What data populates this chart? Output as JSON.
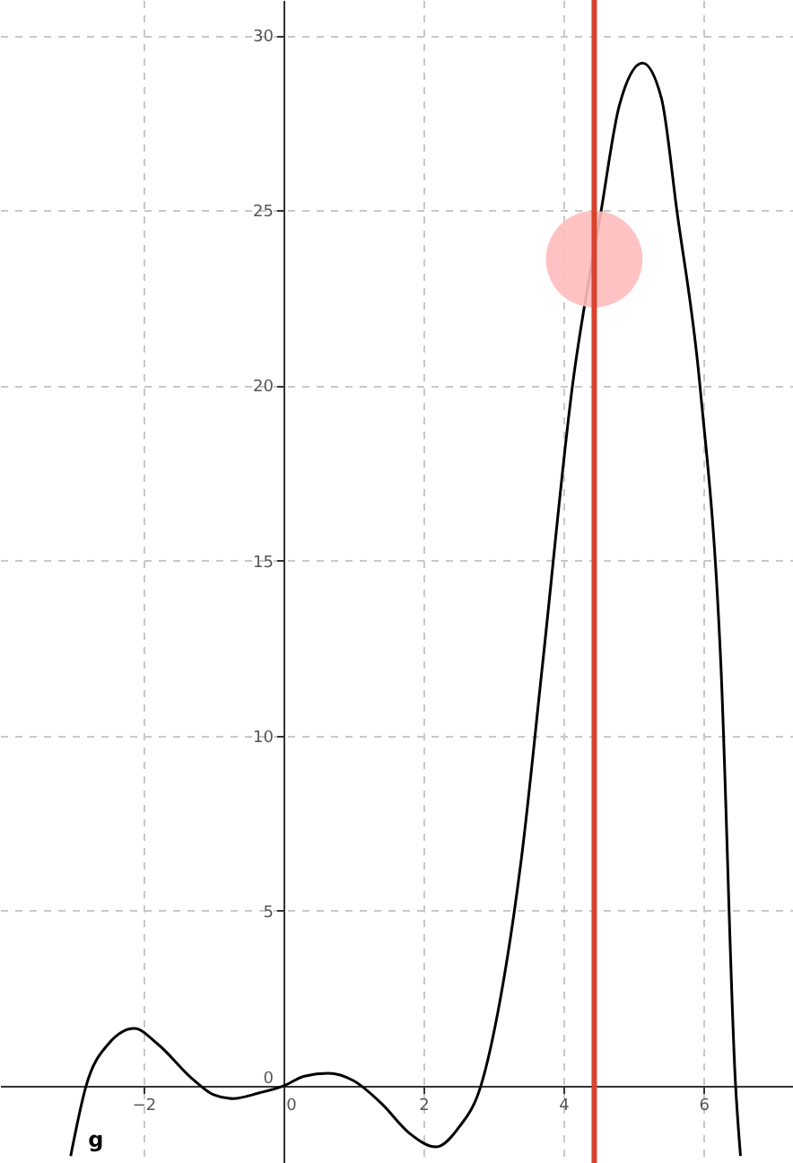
{
  "chart_data": {
    "type": "line",
    "xlim": [
      -4.05,
      7.28
    ],
    "ylim": [
      -2.2,
      31
    ],
    "xticks": [
      -2,
      0,
      2,
      4,
      6
    ],
    "yticks": [
      0,
      5,
      10,
      15,
      20,
      25,
      30
    ],
    "grid": true,
    "line_style": "solid",
    "series": [
      {
        "type": "line",
        "name": "g",
        "color": "#000000",
        "x": [
          -3.04,
          -2.82,
          -2.5,
          -2.13,
          -1.8,
          -1.3,
          -1.0,
          -0.72,
          -0.35,
          0,
          0.3,
          0.64,
          1.0,
          1.4,
          1.8,
          2.18,
          2.5,
          2.82,
          3.1,
          3.4,
          3.7,
          4.13,
          4.54,
          4.8,
          5.13,
          5.4,
          5.62,
          5.95,
          6.25,
          6.46,
          6.53
        ],
        "values": [
          -2.0,
          0,
          1.2,
          1.64,
          1.2,
          0.2,
          -0.25,
          -0.36,
          -0.2,
          0,
          0.28,
          0.36,
          0.15,
          -0.5,
          -1.35,
          -1.74,
          -1.2,
          0,
          2.5,
          6.5,
          12,
          20,
          25,
          28,
          29.2,
          28.2,
          25,
          20,
          12,
          0,
          -2.0
        ]
      },
      {
        "type": "scatter",
        "marker": "circle",
        "color": "#ffbbbb",
        "x": [
          4.44
        ],
        "values": [
          23.6
        ]
      }
    ],
    "ref_lines": [
      {
        "axis": "x",
        "value": 4.44,
        "color": "#d9432f"
      }
    ]
  }
}
